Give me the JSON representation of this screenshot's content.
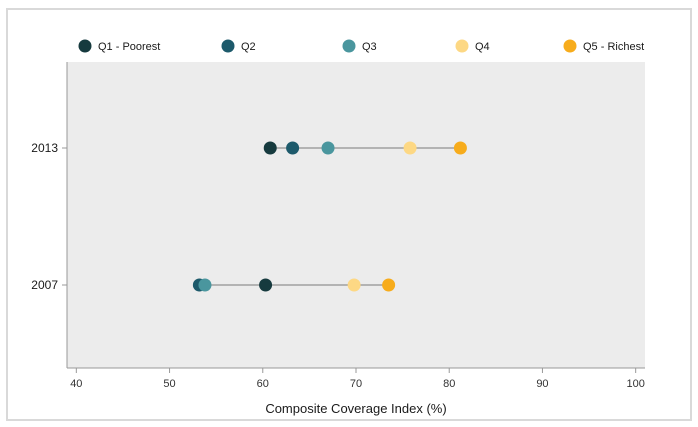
{
  "chart_data": {
    "type": "dot-range",
    "xlabel": "Composite Coverage Index (%)",
    "ylabel": "",
    "xlim": [
      39,
      101
    ],
    "xticks": [
      40,
      50,
      60,
      70,
      80,
      90,
      100
    ],
    "grid": false,
    "legend_position": "top",
    "categories": [
      "2013",
      "2007"
    ],
    "series": [
      {
        "name": "Q1 - Poorest",
        "color": "#163a3e",
        "values": [
          60.8,
          60.3
        ]
      },
      {
        "name": "Q2",
        "color": "#1d5a6b",
        "values": [
          63.2,
          53.2
        ]
      },
      {
        "name": "Q3",
        "color": "#4a969e",
        "values": [
          67.0,
          53.8
        ]
      },
      {
        "name": "Q4",
        "color": "#fdd884",
        "values": [
          75.8,
          69.8
        ]
      },
      {
        "name": "Q5 - Richest",
        "color": "#f7ac1c",
        "values": [
          81.2,
          73.5
        ]
      }
    ],
    "colors": {
      "plot_background": "#ececec",
      "range_line": "#b3b3b3",
      "axis": "#999999"
    }
  }
}
